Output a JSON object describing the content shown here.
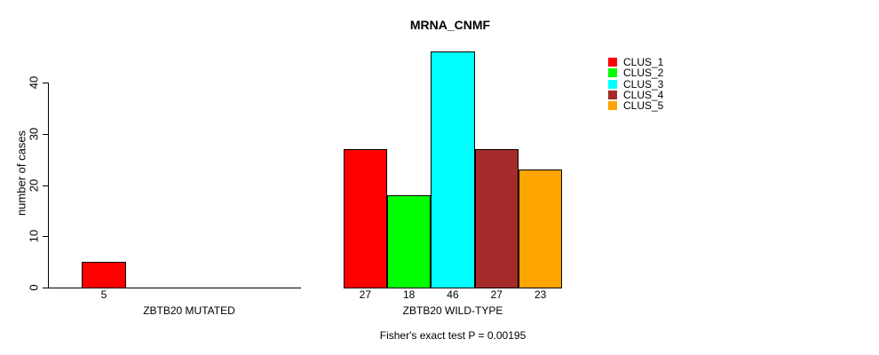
{
  "chart_data": {
    "type": "bar",
    "title": "MRNA_CNMF",
    "subtitle": "Fisher's exact test P = 0.00195",
    "ylabel": "number of cases",
    "xlabel": "",
    "yticks": [
      0,
      10,
      20,
      30,
      40
    ],
    "ylim": [
      0,
      46.5
    ],
    "grid": false,
    "background_color": "#ffffff",
    "axis_color": "#000000",
    "text_color": "#000000",
    "legend": {
      "position": "top-right",
      "entries": [
        {
          "label": "CLUS_1",
          "color": "#ff0000"
        },
        {
          "label": "CLUS_2",
          "color": "#00ff00"
        },
        {
          "label": "CLUS_3",
          "color": "#00ffff"
        },
        {
          "label": "CLUS_4",
          "color": "#a52a2a"
        },
        {
          "label": "CLUS_5",
          "color": "#ffa500"
        }
      ]
    },
    "groups": [
      {
        "label": "ZBTB20 MUTATED",
        "bars": [
          {
            "cluster": "CLUS_1",
            "value": 5,
            "color": "#ff0000"
          }
        ]
      },
      {
        "label": "ZBTB20 WILD-TYPE",
        "bars": [
          {
            "cluster": "CLUS_1",
            "value": 27,
            "color": "#ff0000"
          },
          {
            "cluster": "CLUS_2",
            "value": 18,
            "color": "#00ff00"
          },
          {
            "cluster": "CLUS_3",
            "value": 46,
            "color": "#00ffff"
          },
          {
            "cluster": "CLUS_4",
            "value": 27,
            "color": "#a52a2a"
          },
          {
            "cluster": "CLUS_5",
            "value": 23,
            "color": "#ffa500"
          }
        ]
      }
    ]
  }
}
